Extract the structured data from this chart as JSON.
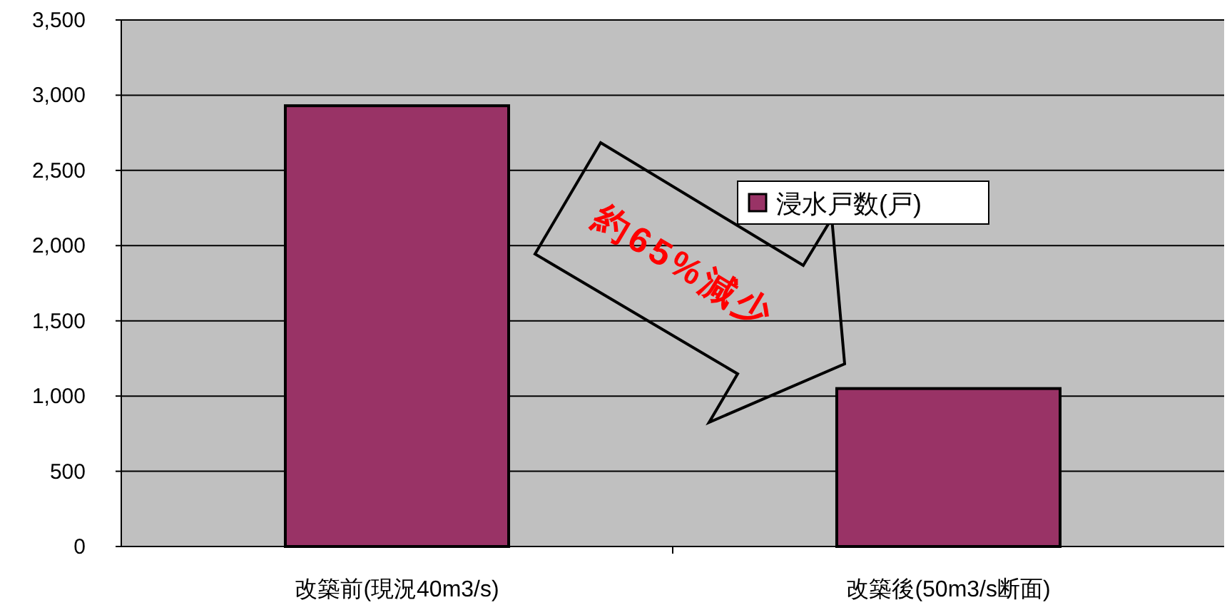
{
  "chart_data": {
    "type": "bar",
    "categories": [
      "改築前(現況40m3/s)",
      "改築後(50m3/s断面)"
    ],
    "series": [
      {
        "name": "浸水戸数(戸)",
        "color": "#993366",
        "values": [
          2930,
          1050
        ]
      }
    ],
    "ylim": [
      0,
      3500
    ],
    "yticks": [
      {
        "value": 0,
        "label": "0"
      },
      {
        "value": 500,
        "label": "500"
      },
      {
        "value": 1000,
        "label": "1,000"
      },
      {
        "value": 1500,
        "label": "1,500"
      },
      {
        "value": 2000,
        "label": "2,000"
      },
      {
        "value": 2500,
        "label": "2,500"
      },
      {
        "value": 3000,
        "label": "3,000"
      },
      {
        "value": 3500,
        "label": "3,500"
      }
    ],
    "grid": "y",
    "legend": "top right",
    "annotations": [
      "約65%減少"
    ]
  }
}
